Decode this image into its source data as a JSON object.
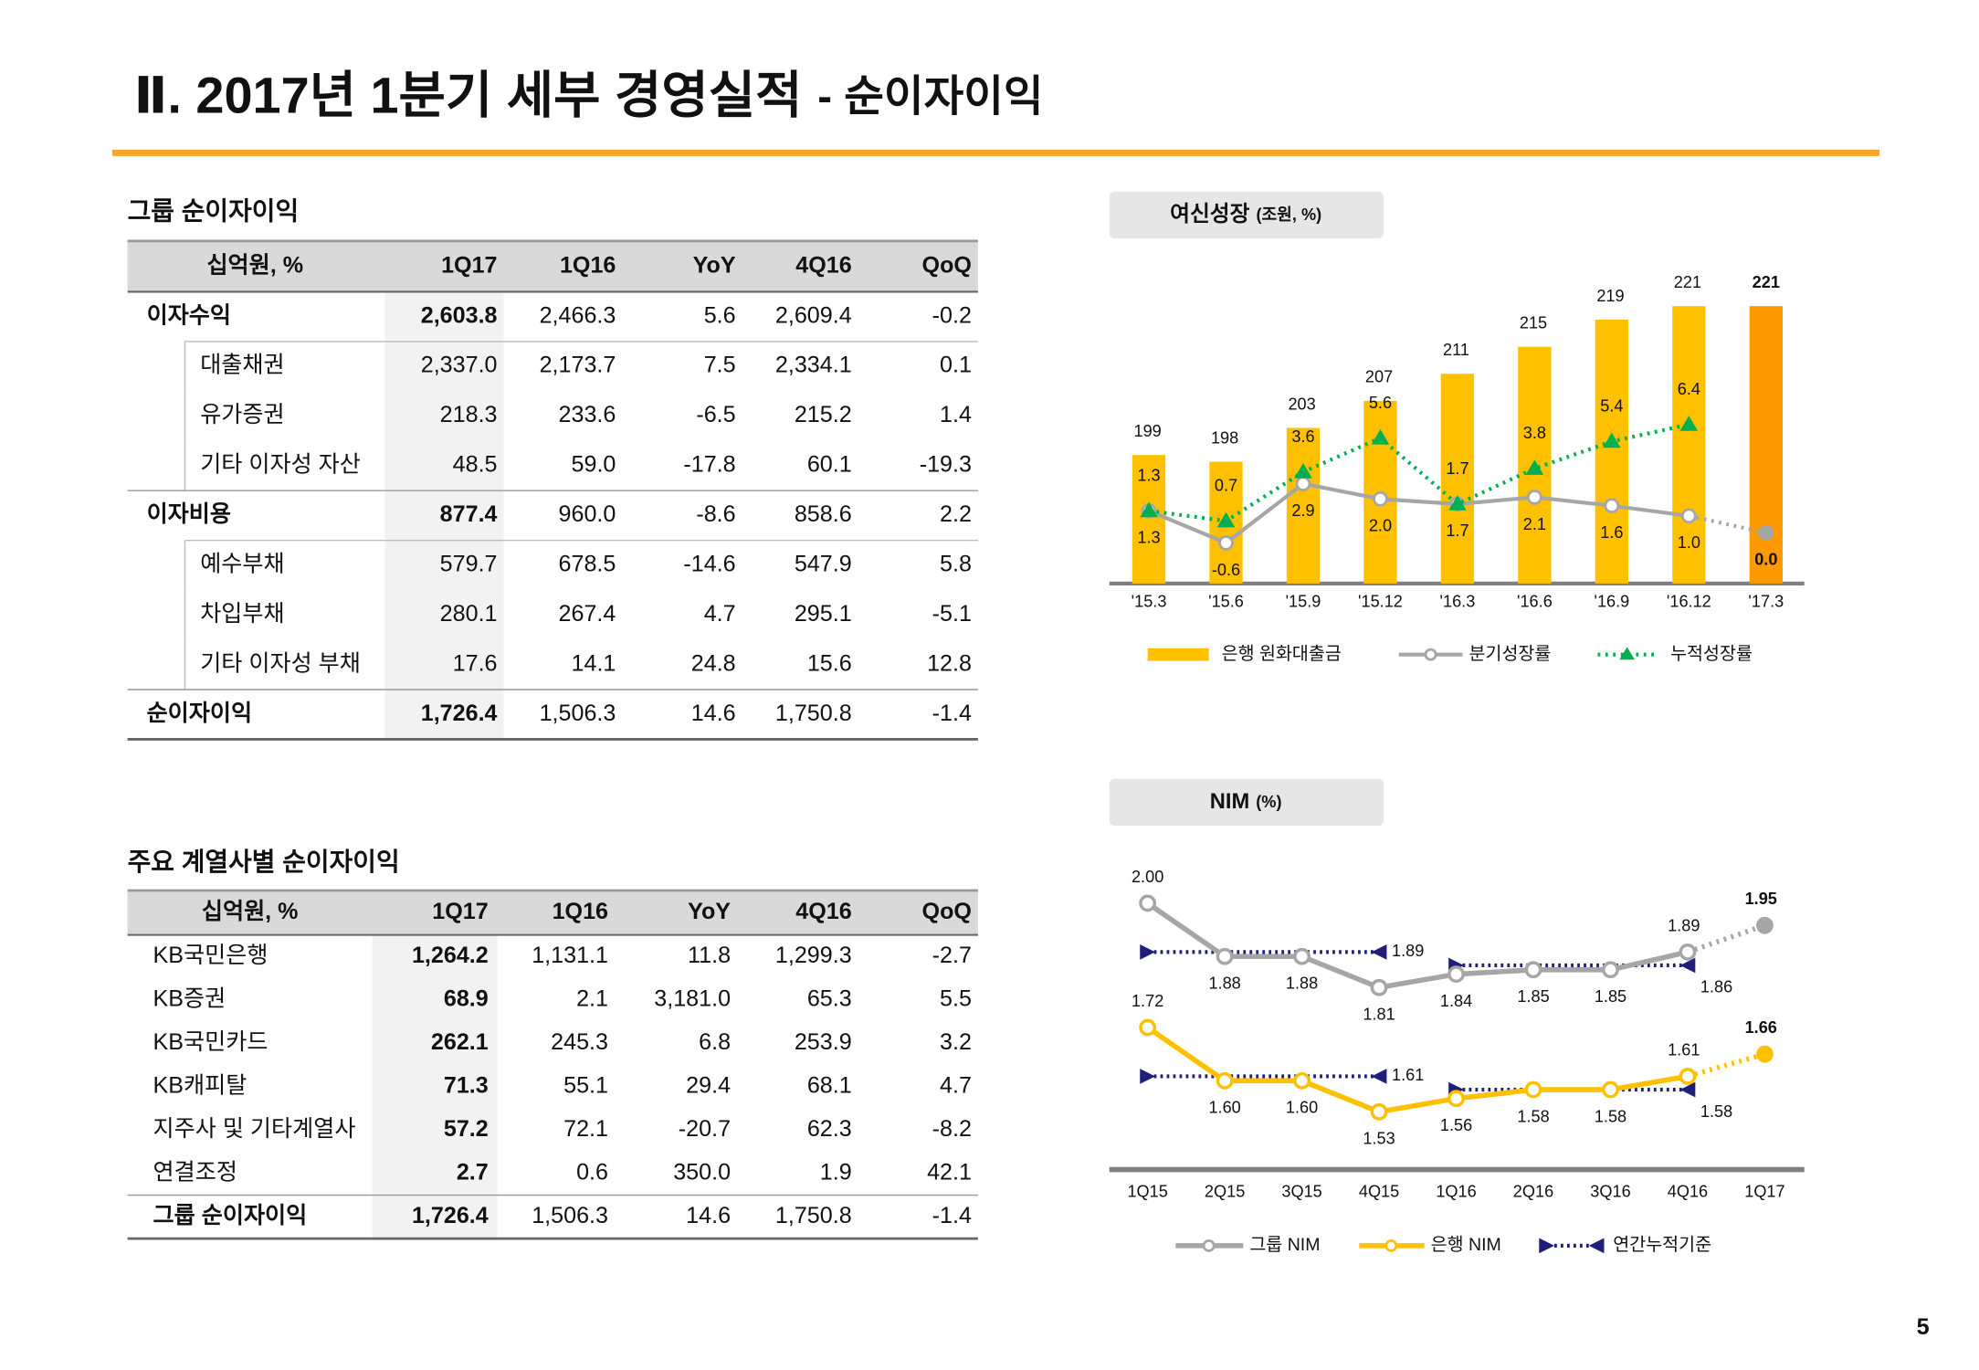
{
  "title": {
    "main": "Ⅱ. 2017년 1분기 세부 경영실적",
    "sub": "- 순이자이익"
  },
  "page_number": "5",
  "tables": [
    {
      "title": "그룹 순이자이익",
      "header": [
        "십억원, %",
        "1Q17",
        "1Q16",
        "YoY",
        "4Q16",
        "QoQ"
      ],
      "rows": [
        [
          "이자수익",
          "2,603.8",
          "2,466.3",
          "5.6",
          "2,609.4",
          "-0.2"
        ],
        [
          "대출채권",
          "2,337.0",
          "2,173.7",
          "7.5",
          "2,334.1",
          "0.1"
        ],
        [
          "유가증권",
          "218.3",
          "233.6",
          "-6.5",
          "215.2",
          "1.4"
        ],
        [
          "기타 이자성 자산",
          "48.5",
          "59.0",
          "-17.8",
          "60.1",
          "-19.3"
        ],
        [
          "이자비용",
          "877.4",
          "960.0",
          "-8.6",
          "858.6",
          "2.2"
        ],
        [
          "예수부채",
          "579.7",
          "678.5",
          "-14.6",
          "547.9",
          "5.8"
        ],
        [
          "차입부채",
          "280.1",
          "267.4",
          "4.7",
          "295.1",
          "-5.1"
        ],
        [
          "기타 이자성 부채",
          "17.6",
          "14.1",
          "24.8",
          "15.6",
          "12.8"
        ],
        [
          "순이자이익",
          "1,726.4",
          "1,506.3",
          "14.6",
          "1,750.8",
          "-1.4"
        ]
      ]
    },
    {
      "title": "주요 계열사별 순이자이익",
      "header": [
        "십억원, %",
        "1Q17",
        "1Q16",
        "YoY",
        "4Q16",
        "QoQ"
      ],
      "rows": [
        [
          "KB국민은행",
          "1,264.2",
          "1,131.1",
          "11.8",
          "1,299.3",
          "-2.7"
        ],
        [
          "KB증권",
          "68.9",
          "2.1",
          "3,181.0",
          "65.3",
          "5.5"
        ],
        [
          "KB국민카드",
          "262.1",
          "245.3",
          "6.8",
          "253.9",
          "3.2"
        ],
        [
          "KB캐피탈",
          "71.3",
          "55.1",
          "29.4",
          "68.1",
          "4.7"
        ],
        [
          "지주사 및 기타계열사",
          "57.2",
          "72.1",
          "-20.7",
          "62.3",
          "-8.2"
        ],
        [
          "연결조정",
          "2.7",
          "0.6",
          "350.0",
          "1.9",
          "42.1"
        ],
        [
          "그룹 순이자이익",
          "1,726.4",
          "1,506.3",
          "14.6",
          "1,750.8",
          "-1.4"
        ]
      ]
    }
  ],
  "chart_data": [
    {
      "type": "bar-line",
      "title": "여신성장",
      "subtitle": "(조원, %)",
      "categories": [
        "'15.3",
        "'15.6",
        "'15.9",
        "'15.12",
        "'16.3",
        "'16.6",
        "'16.9",
        "'16.12",
        "'17.3"
      ],
      "ylim": [
        180,
        240
      ],
      "y2lim": [
        -3,
        21
      ],
      "series": [
        {
          "name": "은행 원화대출금",
          "type": "bar",
          "color": "#ffc000",
          "highlight_color": "#ff9900",
          "values": [
            199,
            198,
            203,
            207,
            211,
            215,
            219,
            221,
            221
          ]
        },
        {
          "name": "분기성장률",
          "type": "line",
          "axis": "y2",
          "color": "#a6a6a6",
          "values": [
            1.3,
            -0.6,
            2.9,
            2.0,
            1.7,
            2.1,
            1.6,
            1.0,
            0.0
          ],
          "value_labels": [
            "1.3",
            "-0.6",
            "2.9",
            "2.0",
            "1.7",
            "2.1",
            "1.6",
            "1.0",
            "0.0"
          ]
        },
        {
          "name": "누적성장률",
          "type": "line",
          "axis": "y2",
          "color": "#00b050",
          "values": [
            1.3,
            0.7,
            3.6,
            5.6,
            1.7,
            3.8,
            5.4,
            6.4,
            null
          ]
        }
      ]
    },
    {
      "type": "line",
      "title": "NIM",
      "subtitle": "(%)",
      "categories": [
        "1Q15",
        "2Q15",
        "3Q15",
        "4Q15",
        "1Q16",
        "2Q16",
        "3Q16",
        "4Q16",
        "1Q17"
      ],
      "ylim": [
        1.4,
        2.1
      ],
      "series": [
        {
          "name": "그룹 NIM",
          "color": "#a6a6a6",
          "values": [
            2.0,
            1.88,
            1.88,
            1.81,
            1.84,
            1.85,
            1.85,
            1.89,
            1.95
          ],
          "value_labels": [
            "2.00",
            "1.88",
            "1.88",
            "1.81",
            "1.84",
            "1.85",
            "1.85",
            "1.89",
            "1.95"
          ]
        },
        {
          "name": "은행 NIM",
          "color": "#ffc000",
          "values": [
            1.72,
            1.6,
            1.6,
            1.53,
            1.56,
            1.58,
            1.58,
            1.61,
            1.66
          ],
          "value_labels": [
            "1.72",
            "1.60",
            "1.60",
            "1.53",
            "1.56",
            "1.58",
            "1.58",
            "1.61",
            "1.66"
          ]
        }
      ],
      "annual_series": {
        "name": "연간누적기준",
        "color": "#1f1f7a",
        "segments": [
          {
            "start": "1Q15",
            "end": "4Q15",
            "value": 1.89
          },
          {
            "start": "1Q16",
            "end": "4Q16",
            "value": 1.86
          },
          {
            "start": "1Q15",
            "end": "4Q15",
            "value": 1.61
          },
          {
            "start": "1Q16",
            "end": "4Q16",
            "value": 1.58
          }
        ]
      }
    }
  ]
}
